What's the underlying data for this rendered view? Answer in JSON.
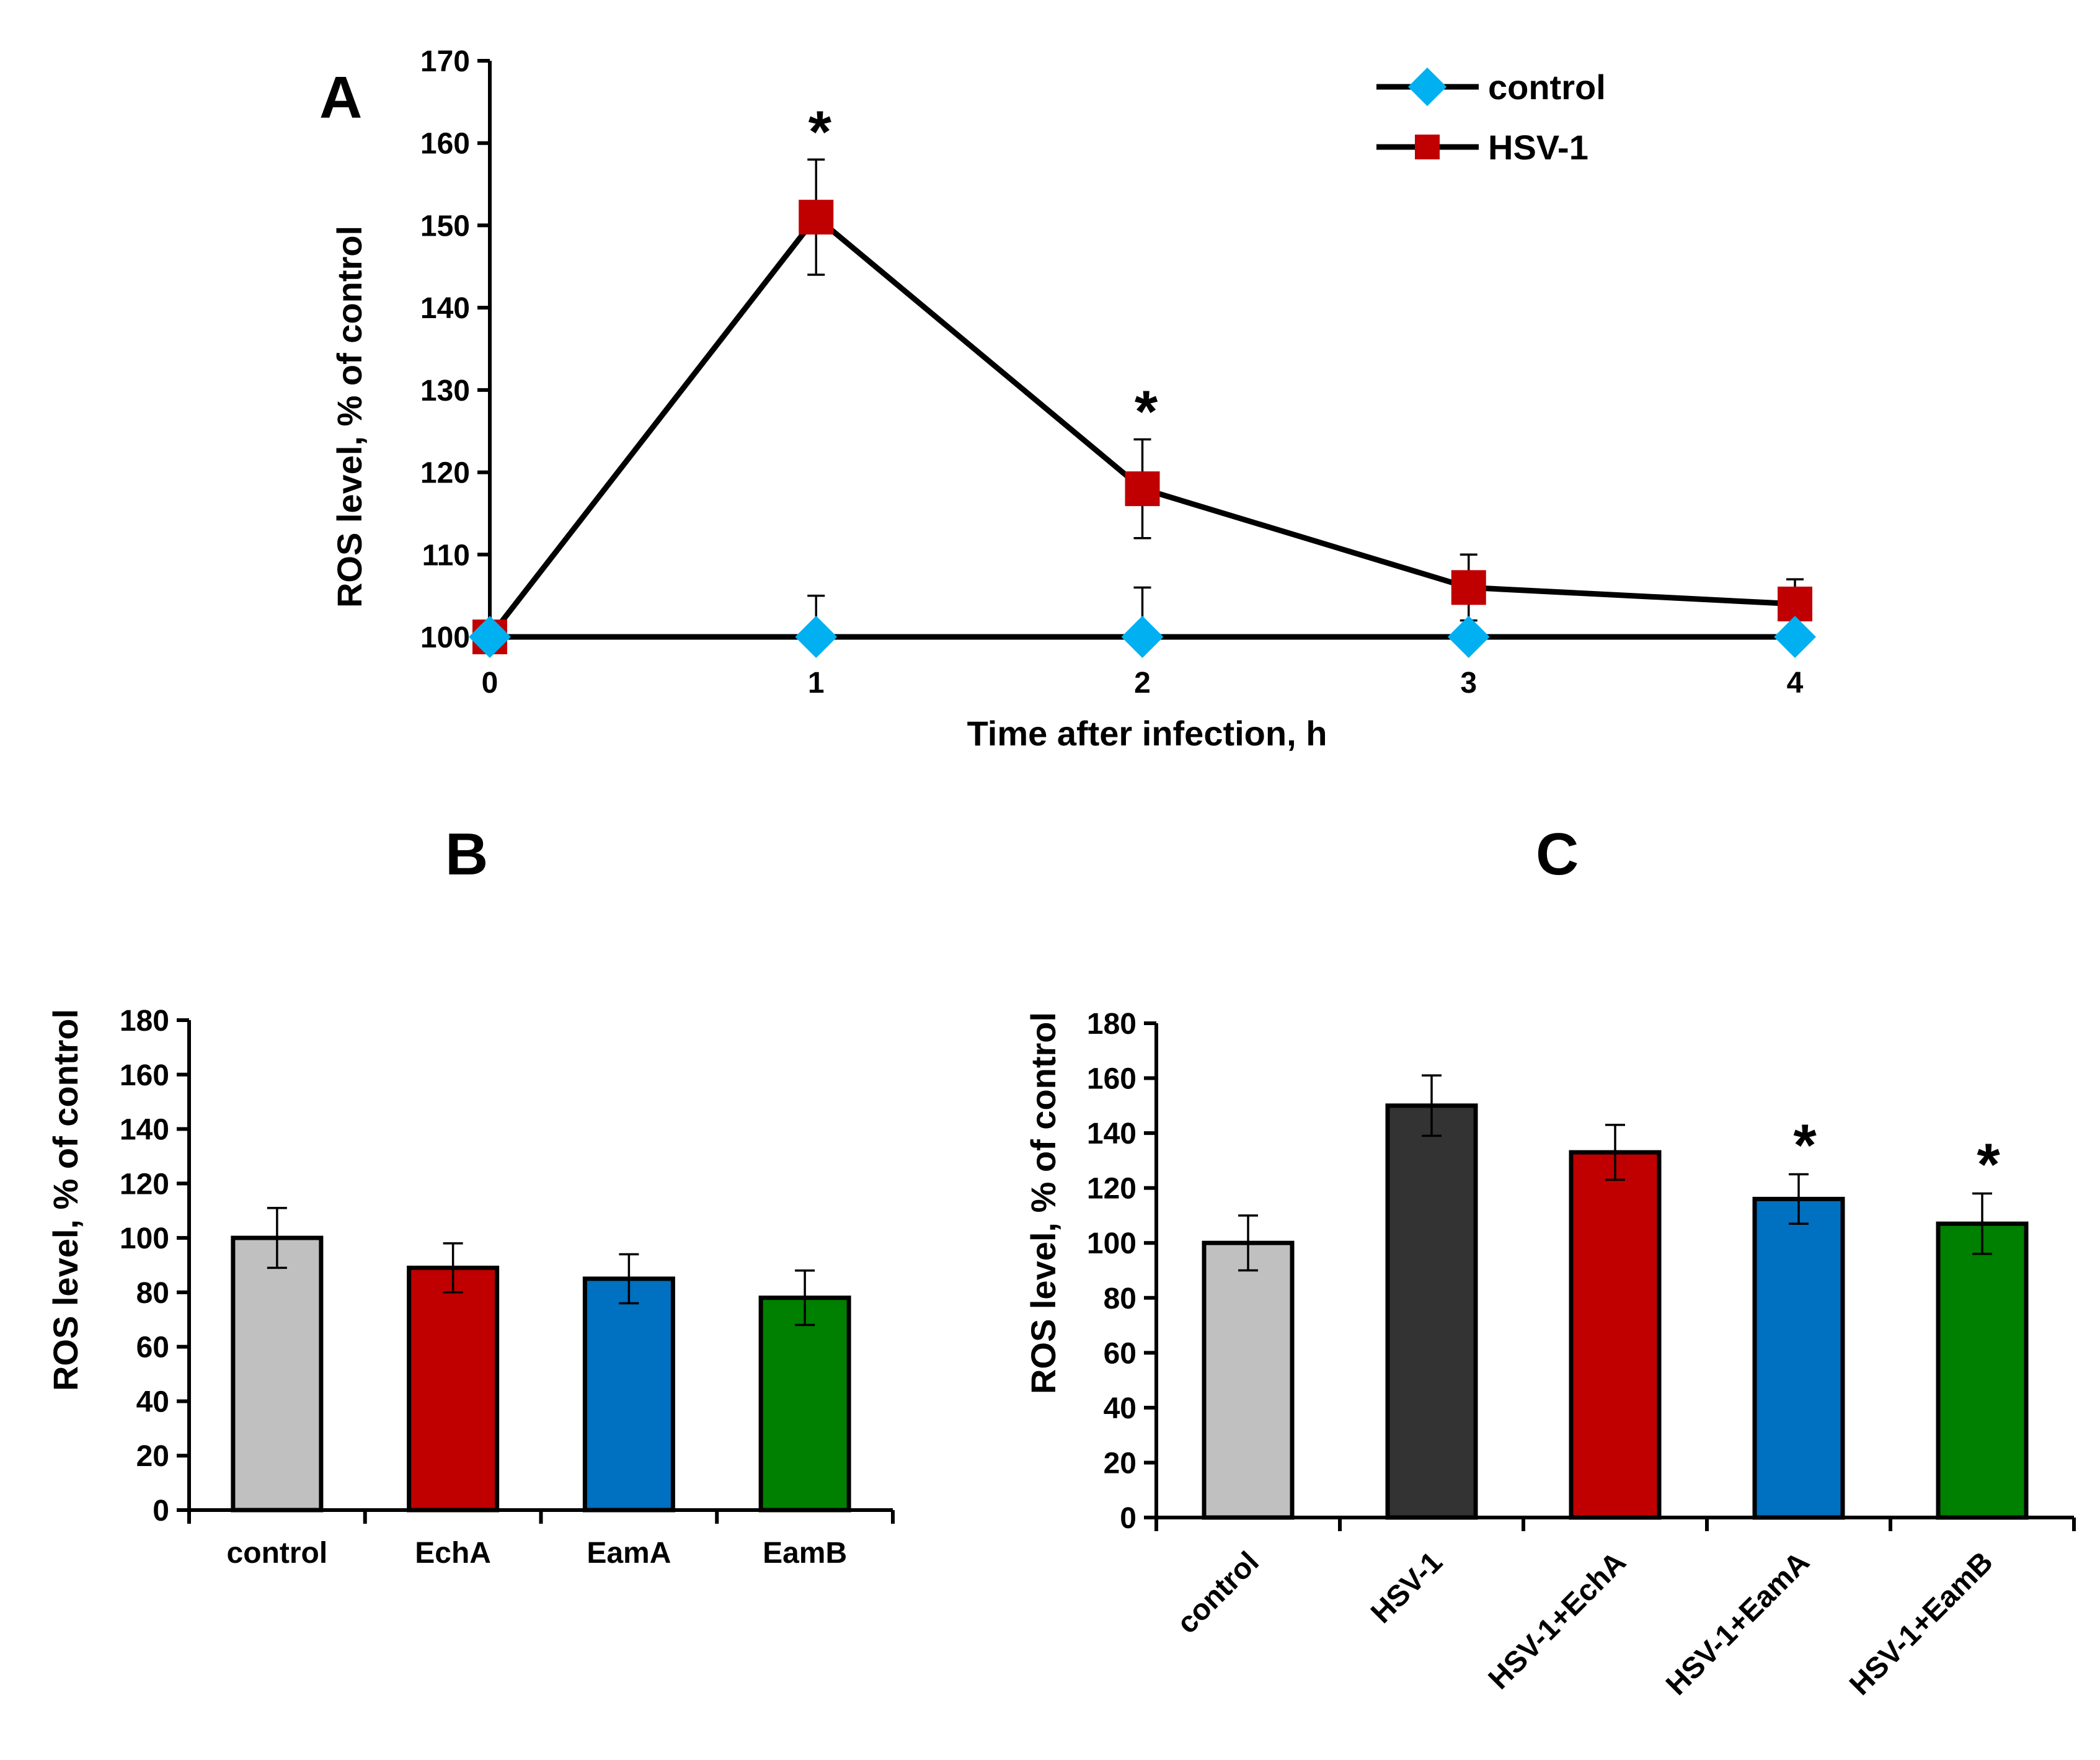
{
  "chart_data": [
    {
      "panel": "A",
      "type": "line",
      "xlabel": "Time after infection,  h",
      "ylabel": "ROS level, % of control",
      "x": [
        0,
        1,
        2,
        3,
        4
      ],
      "xticks": [
        "0",
        "1",
        "2",
        "3",
        "4"
      ],
      "ylim": [
        100,
        170
      ],
      "yticks": [
        100,
        110,
        120,
        130,
        140,
        150,
        160,
        170
      ],
      "legend_position": "top-right",
      "series": [
        {
          "name": "control",
          "color": "#00b0f0",
          "marker": "diamond",
          "values": [
            100,
            100,
            100,
            100,
            100
          ],
          "error": [
            0,
            5,
            6,
            0,
            0
          ],
          "stars": [
            false,
            false,
            false,
            false,
            false
          ]
        },
        {
          "name": "HSV-1",
          "color": "#c00000",
          "marker": "square",
          "values": [
            100,
            151,
            118,
            106,
            104
          ],
          "error": [
            0,
            7,
            6,
            4,
            3
          ],
          "stars": [
            false,
            true,
            true,
            false,
            false
          ]
        }
      ],
      "star_label": "*"
    },
    {
      "panel": "B",
      "type": "bar",
      "ylabel": "ROS level,  % of control",
      "ylim": [
        0,
        180
      ],
      "yticks": [
        0,
        20,
        40,
        60,
        80,
        100,
        120,
        140,
        160,
        180
      ],
      "categories": [
        "control",
        "EchA",
        "EamA",
        "EamB"
      ],
      "values": [
        100,
        89,
        85,
        78
      ],
      "error": [
        11,
        9,
        9,
        10
      ],
      "colors": [
        "#c0c0c0",
        "#c00000",
        "#0070c0",
        "#008000"
      ],
      "stars": [
        false,
        false,
        false,
        false
      ],
      "star_label": "*"
    },
    {
      "panel": "C",
      "type": "bar",
      "ylabel": "ROS level, % of control",
      "ylim": [
        0,
        180
      ],
      "yticks": [
        0,
        20,
        40,
        60,
        80,
        100,
        120,
        140,
        160,
        180
      ],
      "categories": [
        "control",
        "HSV-1",
        "HSV-1+EchA",
        "HSV-1+EamA",
        "HSV-1+EamB"
      ],
      "values": [
        100,
        150,
        133,
        116,
        107
      ],
      "error": [
        10,
        11,
        10,
        9,
        11
      ],
      "colors": [
        "#c0c0c0",
        "#333333",
        "#c00000",
        "#0070c0",
        "#008000"
      ],
      "stars": [
        false,
        false,
        false,
        true,
        true
      ],
      "star_label": "*"
    }
  ]
}
